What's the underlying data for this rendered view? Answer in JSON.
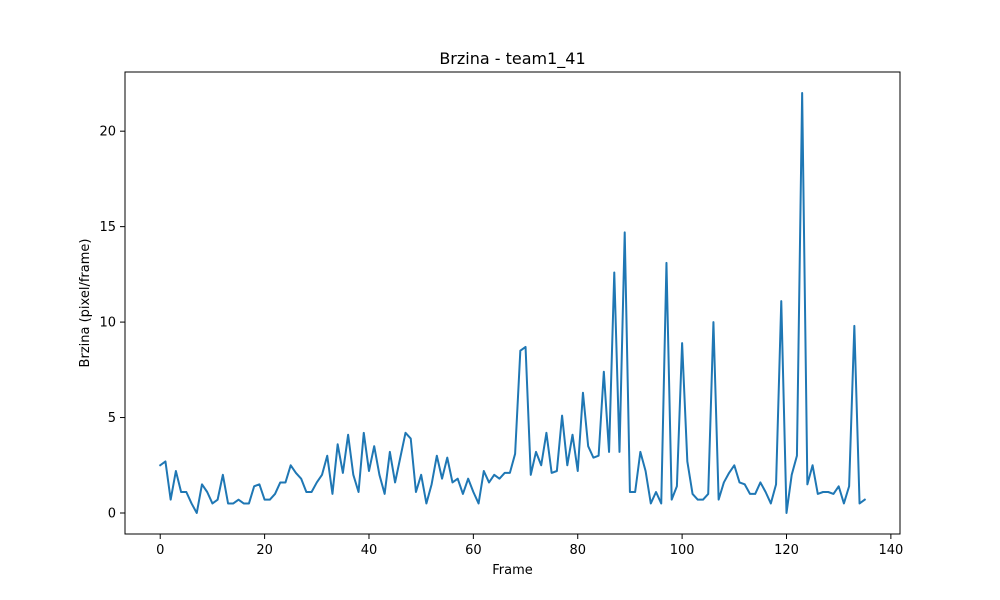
{
  "chart_data": {
    "type": "line",
    "title": "Brzina - team1_41",
    "xlabel": "Frame",
    "ylabel": "Brzina (pixel/frame)",
    "xlim": [
      -6.75,
      141.75
    ],
    "ylim": [
      -1.1,
      23.1
    ],
    "x_ticks": [
      0,
      20,
      40,
      60,
      80,
      100,
      120,
      140
    ],
    "y_ticks": [
      0,
      5,
      10,
      15,
      20
    ],
    "grid": false,
    "color": "#1f77b4",
    "series": [
      {
        "x": [
          0,
          1,
          2,
          3,
          4,
          5,
          6,
          7,
          8,
          9,
          10,
          11,
          12,
          13,
          14,
          15,
          16,
          17,
          18,
          19,
          20,
          21,
          22,
          23,
          24,
          25,
          26,
          27,
          28,
          29,
          30,
          31,
          32,
          33,
          34,
          35,
          36,
          37,
          38,
          39,
          40,
          41,
          42,
          43,
          44,
          45,
          46,
          47,
          48,
          49,
          50,
          51,
          52,
          53,
          54,
          55,
          56,
          57,
          58,
          59,
          60,
          61,
          62,
          63,
          64,
          65,
          66,
          67,
          68,
          69,
          70,
          71,
          72,
          73,
          74,
          75,
          76,
          77,
          78,
          79,
          80,
          81,
          82,
          83,
          84,
          85,
          86,
          87,
          88,
          89,
          90,
          91,
          92,
          93,
          94,
          95,
          96,
          97,
          98,
          99,
          100,
          101,
          102,
          103,
          104,
          105,
          106,
          107,
          108,
          109,
          110,
          111,
          112,
          113,
          114,
          115,
          116,
          117,
          118,
          119,
          120,
          121,
          122,
          123,
          124,
          125,
          126,
          127,
          128,
          129,
          130,
          131,
          132,
          133,
          134,
          135
        ],
        "values": [
          2.5,
          2.7,
          0.7,
          2.2,
          1.1,
          1.1,
          0.5,
          0.0,
          1.5,
          1.1,
          0.5,
          0.7,
          2.0,
          0.5,
          0.5,
          0.7,
          0.5,
          0.5,
          1.4,
          1.5,
          0.7,
          0.7,
          1.0,
          1.6,
          1.6,
          2.5,
          2.1,
          1.8,
          1.1,
          1.1,
          1.6,
          2.0,
          3.0,
          1.0,
          3.6,
          2.1,
          4.1,
          2.0,
          1.1,
          4.2,
          2.2,
          3.5,
          2.0,
          1.0,
          3.2,
          1.6,
          2.9,
          4.2,
          3.9,
          1.1,
          2.0,
          0.5,
          1.5,
          3.0,
          1.8,
          2.9,
          1.6,
          1.8,
          1.0,
          1.8,
          1.1,
          0.5,
          2.2,
          1.6,
          2.0,
          1.8,
          2.1,
          2.1,
          3.1,
          8.5,
          8.7,
          2.0,
          3.2,
          2.5,
          4.2,
          2.1,
          2.2,
          5.1,
          2.5,
          4.1,
          2.2,
          6.3,
          3.5,
          2.9,
          3.0,
          7.4,
          3.2,
          12.6,
          3.2,
          14.7,
          1.1,
          1.1,
          3.2,
          2.2,
          0.5,
          1.1,
          0.5,
          13.1,
          0.7,
          1.4,
          8.9,
          2.7,
          1.0,
          0.7,
          0.7,
          1.0,
          10.0,
          0.7,
          1.6,
          2.1,
          2.5,
          1.6,
          1.5,
          1.0,
          1.0,
          1.6,
          1.1,
          0.5,
          1.5,
          11.1,
          0.0,
          2.0,
          3.0,
          22.0,
          1.5,
          2.5,
          1.0,
          1.1,
          1.1,
          1.0,
          1.4,
          0.5,
          1.4,
          9.8,
          0.5,
          0.7
        ]
      }
    ]
  }
}
